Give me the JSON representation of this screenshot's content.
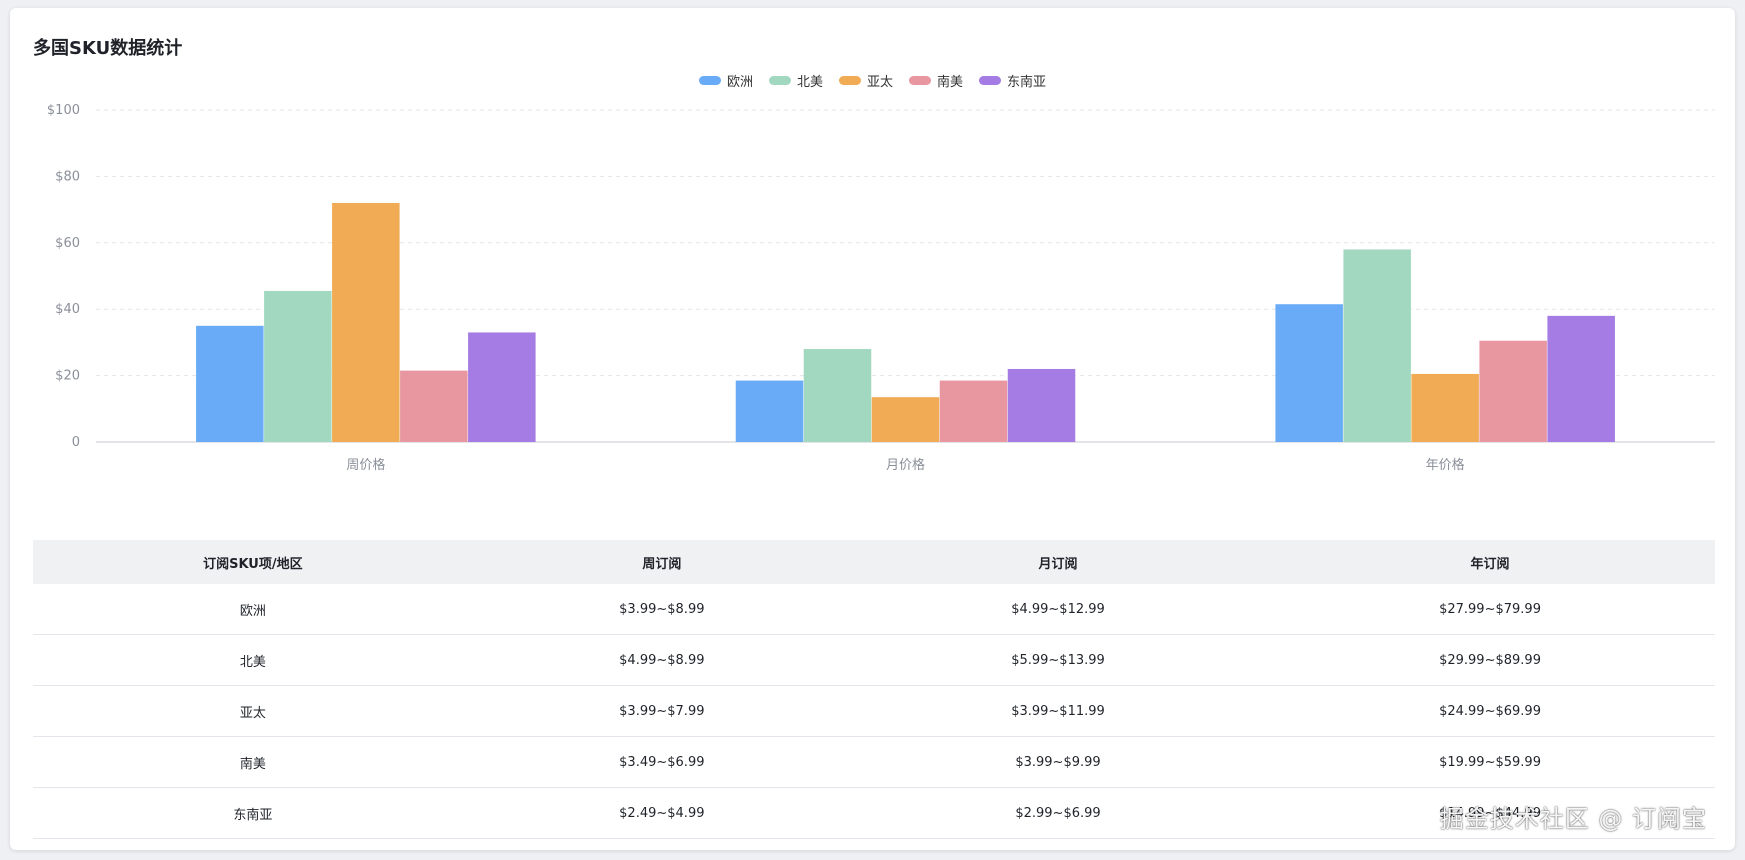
{
  "title": "多国SKU数据统计",
  "chart_data": {
    "type": "bar",
    "categories": [
      "周价格",
      "月价格",
      "年价格"
    ],
    "series": [
      {
        "name": "欧洲",
        "color": "#6aabf7",
        "values": [
          35,
          18.5,
          41.5
        ]
      },
      {
        "name": "北美",
        "color": "#a2d8bf",
        "values": [
          45.5,
          28,
          58
        ]
      },
      {
        "name": "亚太",
        "color": "#f0ab54",
        "values": [
          72,
          13.5,
          20.5
        ]
      },
      {
        "name": "南美",
        "color": "#e897a1",
        "values": [
          21.5,
          18.5,
          30.5
        ]
      },
      {
        "name": "东南亚",
        "color": "#a47ce3",
        "values": [
          33,
          22,
          38
        ]
      }
    ],
    "y_ticks": [
      "0",
      "$20",
      "$40",
      "$60",
      "$80",
      "$100"
    ],
    "ylim": [
      0,
      100
    ],
    "grid": true,
    "legend_position": "top-center"
  },
  "table": {
    "headers": [
      "订阅SKU项/地区",
      "周订阅",
      "月订阅",
      "年订阅"
    ],
    "rows": [
      [
        "欧洲",
        "$3.99~$8.99",
        "$4.99~$12.99",
        "$27.99~$79.99"
      ],
      [
        "北美",
        "$4.99~$8.99",
        "$5.99~$13.99",
        "$29.99~$89.99"
      ],
      [
        "亚太",
        "$3.99~$7.99",
        "$3.99~$11.99",
        "$24.99~$69.99"
      ],
      [
        "南美",
        "$3.49~$6.99",
        "$3.99~$9.99",
        "$19.99~$59.99"
      ],
      [
        "东南亚",
        "$2.49~$4.99",
        "$2.99~$6.99",
        "$14.99~$44.99"
      ]
    ]
  },
  "watermark": "掘金技术社区 @ 订阅宝"
}
